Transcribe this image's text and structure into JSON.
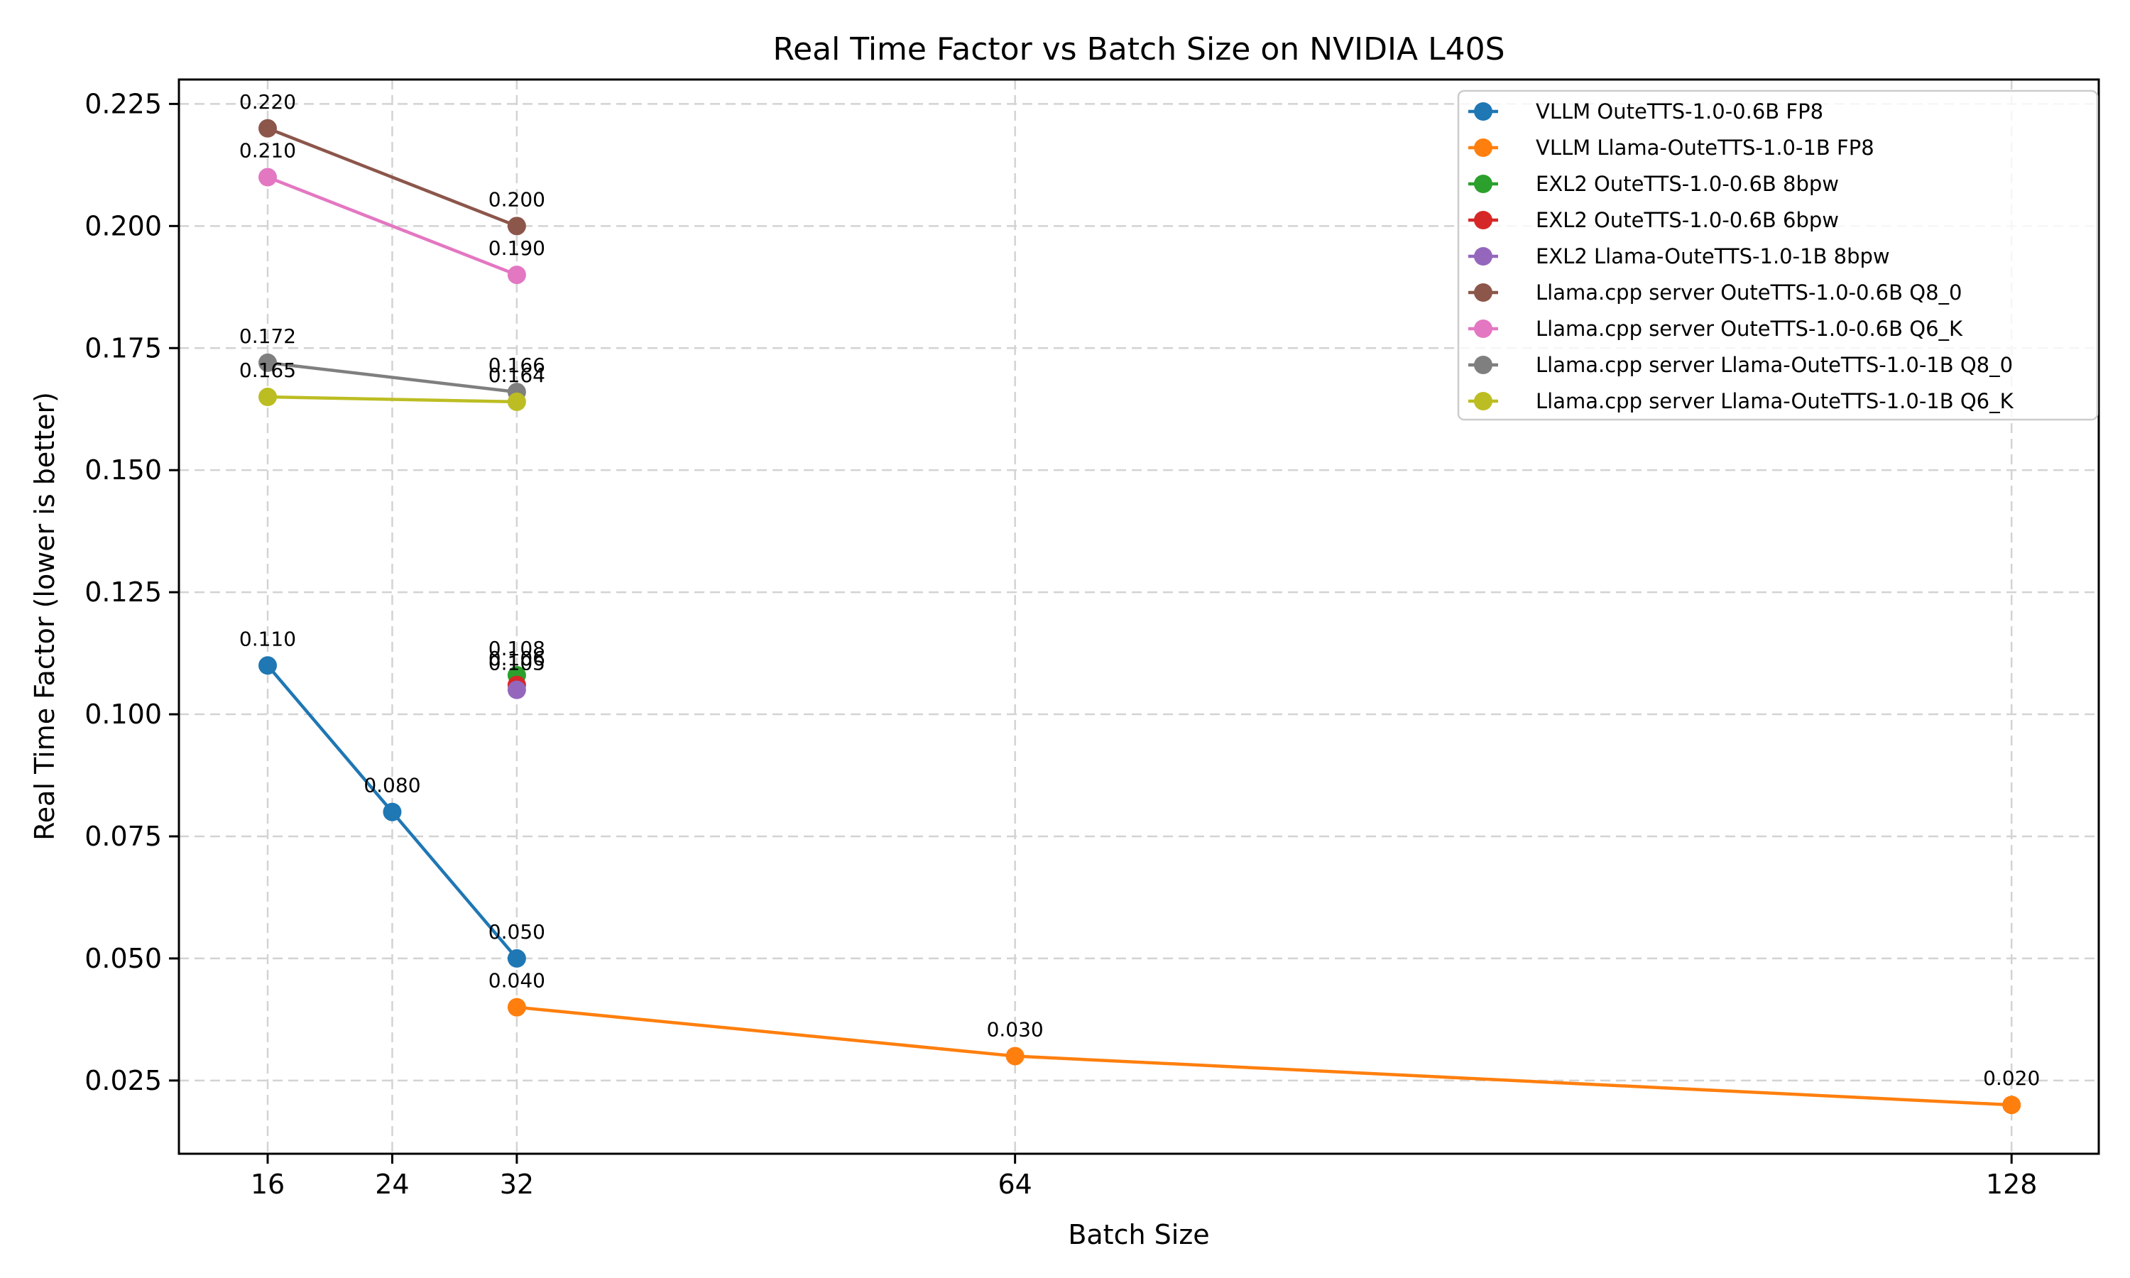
{
  "chart_data": {
    "type": "line",
    "title": "Real Time Factor vs Batch Size on NVIDIA L40S",
    "xlabel": "Batch Size",
    "ylabel": "Real Time Factor (lower is better)",
    "xlim": [
      10.3,
      133.6
    ],
    "ylim": [
      0.01,
      0.23
    ],
    "xticks": [
      16,
      24,
      32,
      64,
      128
    ],
    "xtick_labels": [
      "16",
      "24",
      "32",
      "64",
      "128"
    ],
    "yticks": [
      0.025,
      0.05,
      0.075,
      0.1,
      0.125,
      0.15,
      0.175,
      0.2,
      0.225
    ],
    "ytick_labels": [
      "0.025",
      "0.050",
      "0.075",
      "0.100",
      "0.125",
      "0.150",
      "0.175",
      "0.200",
      "0.225"
    ],
    "grid": true,
    "legend_position": "top-right",
    "series": [
      {
        "name": "VLLM OuteTTS-1.0-0.6B FP8",
        "color": "#1f77b4",
        "x": [
          16,
          24,
          32
        ],
        "y": [
          0.11,
          0.08,
          0.05
        ],
        "labels": [
          "0.110",
          "0.080",
          "0.050"
        ]
      },
      {
        "name": "VLLM Llama-OuteTTS-1.0-1B FP8",
        "color": "#ff7f0e",
        "x": [
          32,
          64,
          128
        ],
        "y": [
          0.04,
          0.03,
          0.02
        ],
        "labels": [
          "0.040",
          "0.030",
          "0.020"
        ]
      },
      {
        "name": "EXL2 OuteTTS-1.0-0.6B 8bpw",
        "color": "#2ca02c",
        "x": [
          32
        ],
        "y": [
          0.108
        ],
        "labels": [
          "0.108"
        ]
      },
      {
        "name": "EXL2 OuteTTS-1.0-0.6B 6bpw",
        "color": "#d62728",
        "x": [
          32
        ],
        "y": [
          0.106
        ],
        "labels": [
          "0.106"
        ]
      },
      {
        "name": "EXL2 Llama-OuteTTS-1.0-1B 8bpw",
        "color": "#9467bd",
        "x": [
          32
        ],
        "y": [
          0.105
        ],
        "labels": [
          "0.105"
        ]
      },
      {
        "name": "Llama.cpp server OuteTTS-1.0-0.6B Q8_0",
        "color": "#8c564b",
        "x": [
          16,
          32
        ],
        "y": [
          0.22,
          0.2
        ],
        "labels": [
          "0.220",
          "0.200"
        ]
      },
      {
        "name": "Llama.cpp server OuteTTS-1.0-0.6B Q6_K",
        "color": "#e377c2",
        "x": [
          16,
          32
        ],
        "y": [
          0.21,
          0.19
        ],
        "labels": [
          "0.210",
          "0.190"
        ]
      },
      {
        "name": "Llama.cpp server Llama-OuteTTS-1.0-1B Q8_0",
        "color": "#7f7f7f",
        "x": [
          16,
          32
        ],
        "y": [
          0.172,
          0.166
        ],
        "labels": [
          "0.172",
          "0.166"
        ]
      },
      {
        "name": "Llama.cpp server Llama-OuteTTS-1.0-1B Q6_K",
        "color": "#bcbd22",
        "x": [
          16,
          32
        ],
        "y": [
          0.165,
          0.164
        ],
        "labels": [
          "0.165",
          "0.164"
        ]
      }
    ]
  }
}
